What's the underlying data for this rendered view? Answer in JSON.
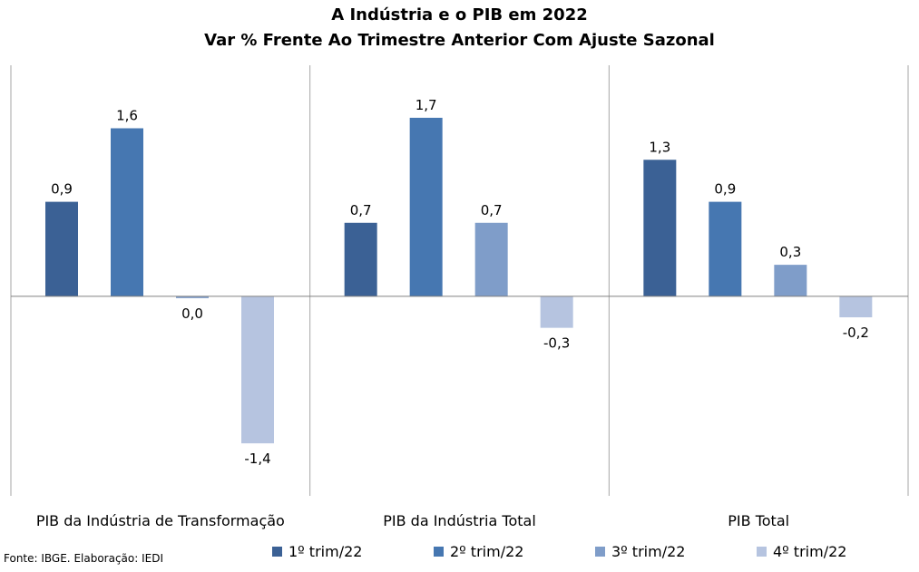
{
  "chart_data": {
    "type": "bar",
    "title": "A Indústria e o PIB em 2022",
    "subtitle": "Var % Frente Ao Trimestre Anterior Com Ajuste Sazonal",
    "categories": [
      "PIB da Indústria de Transformação",
      "PIB da Indústria Total",
      "PIB Total"
    ],
    "series": [
      {
        "name": "1º trim/22",
        "color": "#3b6195",
        "values": [
          0.9,
          0.7,
          1.3
        ],
        "labels": [
          "0,9",
          "0,7",
          "1,3"
        ]
      },
      {
        "name": "2º trim/22",
        "color": "#4677b1",
        "values": [
          1.6,
          1.7,
          0.9
        ],
        "labels": [
          "1,6",
          "1,7",
          "0,9"
        ]
      },
      {
        "name": "3º trim/22",
        "color": "#7f9dc9",
        "values": [
          0.0,
          0.7,
          0.3
        ],
        "labels": [
          "0,0",
          "0,7",
          "0,3"
        ]
      },
      {
        "name": "4º trim/22",
        "color": "#b6c4e0",
        "values": [
          -1.4,
          -0.3,
          -0.2
        ],
        "labels": [
          "-1,4",
          "-0,3",
          "-0,2"
        ]
      }
    ],
    "ylim": [
      -1.9,
      2.2
    ],
    "legend": "bottom"
  },
  "source": "Fonte: IBGE. Elaboração: IEDI"
}
